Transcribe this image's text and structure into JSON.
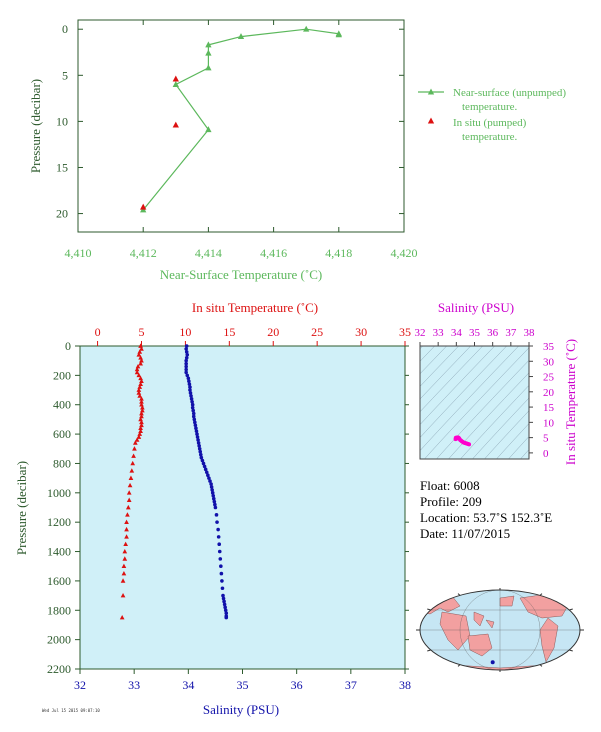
{
  "colors": {
    "nst": "#5cb85c",
    "pumped": "#dd1111",
    "ts": "#ff00cc",
    "temp": "#dd1111",
    "sal": "#1111aa",
    "axis": "#2d5a2d",
    "panel_bg": "#d0f0f8",
    "land": "#f2a0a0",
    "ocean": "#c6e6f4"
  },
  "chart_data": [
    {
      "id": "near_surface",
      "type": "line",
      "title": "",
      "xlabel": "Near-Surface Temperature (˚C)",
      "ylabel": "Pressure (decibar)",
      "xlim": [
        4.41,
        4.42
      ],
      "ylim": [
        22,
        -1
      ],
      "xticks": [
        4.41,
        4.412,
        4.414,
        4.416,
        4.418,
        4.42
      ],
      "xticklabels": [
        "4,410",
        "4,412",
        "4,414",
        "4,416",
        "4,418",
        "4,420"
      ],
      "yticks": [
        0,
        5,
        10,
        15,
        20
      ],
      "yticklabels": [
        "0",
        "5",
        "10",
        "15",
        "20"
      ],
      "legend_position": "right",
      "series": [
        {
          "name": "Near-surface (unpumped) temperature.",
          "name_lines": [
            "Near-surface (unpumped)",
            "temperature."
          ],
          "marker": "triangle",
          "line": true,
          "points": [
            [
              4.418,
              0.6
            ],
            [
              4.418,
              0.5
            ],
            [
              4.417,
              0.0
            ],
            [
              4.415,
              0.8
            ],
            [
              4.414,
              1.7
            ],
            [
              4.414,
              2.6
            ],
            [
              4.414,
              4.2
            ],
            [
              4.413,
              6.0
            ],
            [
              4.414,
              10.9
            ],
            [
              4.412,
              19.6
            ]
          ]
        },
        {
          "name": "In situ (pumped) temperature.",
          "name_lines": [
            "In situ (pumped)",
            "temperature."
          ],
          "marker": "triangle",
          "line": false,
          "points": [
            [
              4.413,
              5.4
            ],
            [
              4.413,
              10.4
            ],
            [
              4.412,
              19.3
            ]
          ]
        }
      ]
    },
    {
      "id": "profile",
      "type": "scatter",
      "title": "",
      "ylabel": "Pressure (decibar)",
      "ylim": [
        2200,
        0
      ],
      "yticks": [
        0,
        200,
        400,
        600,
        800,
        1000,
        1200,
        1400,
        1600,
        1800,
        2000,
        2200
      ],
      "yticklabels": [
        "0",
        "200",
        "400",
        "600",
        "800",
        "1000",
        "1200",
        "1400",
        "1600",
        "1800",
        "2000",
        "2200"
      ],
      "top_axis": {
        "label": "In situ Temperature (˚C)",
        "lim": [
          -2,
          35
        ],
        "ticks": [
          0,
          5,
          10,
          15,
          20,
          25,
          30,
          35
        ],
        "ticklabels": [
          "0",
          "5",
          "10",
          "15",
          "20",
          "25",
          "30",
          "35"
        ]
      },
      "bottom_axis": {
        "label": "Salinity (PSU)",
        "lim": [
          32,
          38
        ],
        "ticks": [
          32,
          33,
          34,
          35,
          36,
          37,
          38
        ],
        "ticklabels": [
          "32",
          "33",
          "34",
          "35",
          "36",
          "37",
          "38"
        ]
      },
      "series": [
        {
          "name": "In situ Temperature",
          "marker": "triangle",
          "x": [
            4.9,
            5.0,
            4.8,
            4.7,
            4.9,
            5.0,
            4.9,
            4.6,
            4.5,
            4.5,
            4.7,
            4.9,
            5.0,
            4.9,
            4.8,
            4.7,
            4.7,
            4.8,
            5.0,
            5.0,
            5.0,
            5.1,
            5.1,
            5.0,
            5.0,
            4.9,
            5.0,
            5.0,
            4.9,
            4.9,
            4.8,
            4.7,
            4.5,
            4.3,
            4.2,
            4.1,
            4.0,
            3.9,
            3.8,
            3.7,
            3.6,
            3.6,
            3.5,
            3.4,
            3.3,
            3.3,
            3.3,
            3.2,
            3.1,
            3.1,
            3.0,
            3.0,
            2.9,
            2.9,
            2.8
          ],
          "y": [
            0,
            20,
            40,
            60,
            80,
            100,
            120,
            140,
            160,
            180,
            200,
            220,
            240,
            260,
            280,
            300,
            320,
            340,
            360,
            380,
            400,
            420,
            440,
            460,
            480,
            500,
            520,
            540,
            560,
            580,
            600,
            620,
            640,
            660,
            700,
            750,
            800,
            850,
            900,
            950,
            1000,
            1050,
            1100,
            1150,
            1200,
            1250,
            1300,
            1350,
            1400,
            1450,
            1500,
            1550,
            1600,
            1700,
            1850
          ]
        },
        {
          "name": "Salinity",
          "marker": "circle",
          "x": [
            33.97,
            33.96,
            33.97,
            33.98,
            33.97,
            33.96,
            33.96,
            33.96,
            33.96,
            33.96,
            33.98,
            34.0,
            34.01,
            34.02,
            34.03,
            34.03,
            34.04,
            34.05,
            34.06,
            34.07,
            34.08,
            34.08,
            34.09,
            34.1,
            34.1,
            34.11,
            34.12,
            34.13,
            34.14,
            34.15,
            34.16,
            34.17,
            34.18,
            34.19,
            34.2,
            34.21,
            34.22,
            34.23,
            34.24,
            34.26,
            34.28,
            34.3,
            34.32,
            34.34,
            34.36,
            34.38,
            34.4,
            34.42,
            34.43,
            34.44,
            34.45,
            34.46,
            34.47,
            34.48,
            34.49,
            34.5,
            34.52,
            34.53,
            34.55,
            34.56,
            34.57,
            34.58,
            34.59,
            34.6,
            34.61,
            34.62,
            34.63,
            34.64,
            34.65,
            34.66,
            34.67,
            34.68,
            34.69,
            34.7,
            34.7,
            34.7
          ],
          "y": [
            0,
            20,
            40,
            60,
            80,
            100,
            120,
            140,
            160,
            180,
            200,
            220,
            240,
            260,
            280,
            300,
            320,
            340,
            360,
            380,
            400,
            420,
            440,
            460,
            480,
            500,
            520,
            540,
            560,
            580,
            600,
            620,
            640,
            660,
            680,
            700,
            720,
            740,
            760,
            780,
            800,
            820,
            840,
            860,
            880,
            900,
            920,
            940,
            960,
            980,
            1000,
            1020,
            1040,
            1060,
            1080,
            1100,
            1150,
            1200,
            1250,
            1300,
            1350,
            1400,
            1450,
            1500,
            1550,
            1600,
            1650,
            1700,
            1720,
            1740,
            1760,
            1780,
            1800,
            1820,
            1840,
            1850
          ]
        }
      ]
    },
    {
      "id": "ts_diagram",
      "type": "scatter",
      "title": "",
      "top_axis": {
        "label": "Salinity (PSU)",
        "lim": [
          32,
          38
        ],
        "ticks": [
          32,
          33,
          34,
          35,
          36,
          37,
          38
        ],
        "ticklabels": [
          "32",
          "33",
          "34",
          "35",
          "36",
          "37",
          "38"
        ]
      },
      "right_axis": {
        "label": "In situ Temperature (˚C)",
        "lim": [
          -2,
          35
        ],
        "ticks": [
          0,
          5,
          10,
          15,
          20,
          25,
          30,
          35
        ],
        "ticklabels": [
          "0",
          "5",
          "10",
          "15",
          "20",
          "25",
          "30",
          "35"
        ]
      },
      "series": [
        {
          "name": "T-S",
          "x": [
            33.97,
            33.96,
            33.98,
            34.0,
            34.02,
            34.04,
            34.06,
            34.08,
            34.1,
            34.12,
            34.15,
            34.18,
            34.22,
            34.26,
            34.3,
            34.35,
            34.4,
            34.45,
            34.5,
            34.55,
            34.6,
            34.65,
            34.7
          ],
          "y": [
            4.9,
            4.5,
            4.8,
            5.0,
            4.9,
            4.7,
            5.0,
            5.1,
            5.0,
            4.9,
            4.8,
            4.5,
            4.2,
            4.0,
            3.8,
            3.6,
            3.4,
            3.3,
            3.2,
            3.1,
            3.0,
            2.9,
            2.8
          ]
        }
      ]
    }
  ],
  "info": {
    "float": "Float:  6008",
    "profile": "Profile:  209",
    "location": "Location:  53.7˚S  152.3˚E",
    "date": "Date:  11/07/2015"
  },
  "stamp": "Wed Jul 15 2015 09:07:10",
  "map": {
    "marker_lat": -53.7,
    "marker_lon": 152.3
  }
}
